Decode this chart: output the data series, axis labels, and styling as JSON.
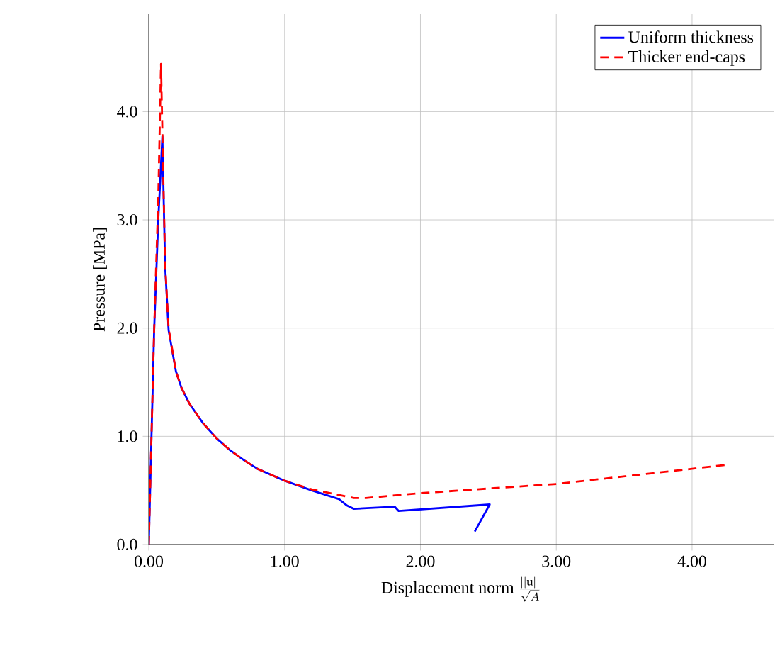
{
  "chart_data": {
    "type": "line",
    "xlabel": "\\textrm{Displacement norm}\\ \\frac{||\\mathbf{u}||}{\\sqrt{A}}",
    "ylabel": "Pressure [MPa]",
    "xlim": [
      0,
      4.6
    ],
    "ylim": [
      0,
      4.9
    ],
    "xticks": [
      {
        "value": 0,
        "label": "0.00"
      },
      {
        "value": 1,
        "label": "1.00"
      },
      {
        "value": 2,
        "label": "2.00"
      },
      {
        "value": 3,
        "label": "3.00"
      },
      {
        "value": 4,
        "label": "4.00"
      }
    ],
    "yticks": [
      {
        "value": 0,
        "label": "0.0"
      },
      {
        "value": 1,
        "label": "1.0"
      },
      {
        "value": 2,
        "label": "2.0"
      },
      {
        "value": 3,
        "label": "3.0"
      },
      {
        "value": 4,
        "label": "4.0"
      }
    ],
    "grid": true,
    "legend": "top right",
    "marker": "none",
    "series": [
      {
        "name": "Uniform thickness",
        "color": "#0000ff",
        "line_style": "solid",
        "x": [
          0,
          0.02,
          0.04,
          0.07,
          0.1,
          0.12,
          0.146,
          0.2,
          0.24,
          0.3,
          0.4,
          0.5,
          0.6,
          0.7,
          0.8,
          1.0,
          1.2,
          1.4,
          1.46,
          1.51,
          1.81,
          1.84,
          2.51,
          2.4
        ],
        "values": [
          0,
          1.0,
          2.0,
          3.0,
          3.77,
          2.58,
          1.98,
          1.6,
          1.45,
          1.3,
          1.12,
          0.98,
          0.87,
          0.78,
          0.7,
          0.59,
          0.5,
          0.42,
          0.36,
          0.33,
          0.35,
          0.31,
          0.37,
          0.12
        ]
      },
      {
        "name": "Thicker end-caps",
        "color": "#ff0000",
        "line_style": "dashed",
        "x": [
          0,
          0.02,
          0.04,
          0.07,
          0.09,
          0.12,
          0.146,
          0.2,
          0.24,
          0.3,
          0.4,
          0.5,
          0.6,
          0.7,
          0.8,
          1.0,
          1.2,
          1.51,
          1.6,
          2.0,
          3.0,
          4.0,
          4.27
        ],
        "values": [
          0,
          1.0,
          2.0,
          3.2,
          4.44,
          2.6,
          2.0,
          1.6,
          1.45,
          1.3,
          1.12,
          0.98,
          0.87,
          0.78,
          0.7,
          0.59,
          0.51,
          0.43,
          0.43,
          0.475,
          0.56,
          0.7,
          0.74
        ]
      }
    ]
  }
}
